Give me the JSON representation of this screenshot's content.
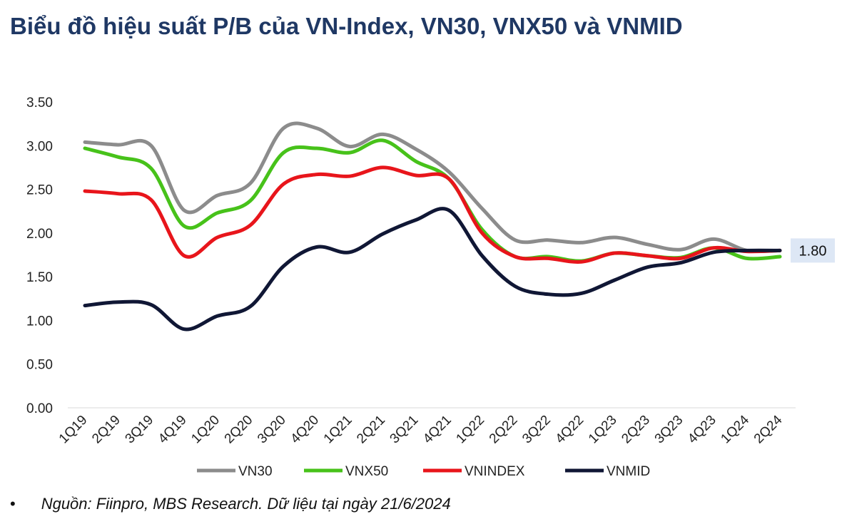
{
  "title": "Biểu đồ hiệu suất P/B của VN-Index, VN30, VNX50 và VNMID",
  "source_bullet": "•",
  "source": "Nguồn: Fiinpro, MBS Research. Dữ liệu tại ngày 21/6/2024",
  "chart_data": {
    "type": "line",
    "title": "Biểu đồ hiệu suất P/B của VN-Index, VN30, VNX50 và VNMID",
    "xlabel": "",
    "ylabel": "",
    "ylim": [
      0,
      3.5
    ],
    "yticks": [
      "0.00",
      "0.50",
      "1.00",
      "1.50",
      "2.00",
      "2.50",
      "3.00",
      "3.50"
    ],
    "grid": false,
    "legend_position": "bottom",
    "categories": [
      "1Q19",
      "2Q19",
      "3Q19",
      "4Q19",
      "1Q20",
      "2Q20",
      "3Q20",
      "4Q20",
      "1Q21",
      "2Q21",
      "3Q21",
      "4Q21",
      "1Q22",
      "2Q22",
      "3Q22",
      "4Q22",
      "1Q23",
      "2Q23",
      "3Q23",
      "4Q23",
      "1Q24",
      "2Q24"
    ],
    "series": [
      {
        "name": "VN30",
        "color": "#8c8c8c",
        "values": [
          3.04,
          3.01,
          3.0,
          2.26,
          2.43,
          2.57,
          3.2,
          3.2,
          2.99,
          3.13,
          2.96,
          2.7,
          2.28,
          1.92,
          1.92,
          1.89,
          1.95,
          1.87,
          1.81,
          1.93,
          1.8,
          1.8
        ]
      },
      {
        "name": "VNX50",
        "color": "#47c21a",
        "values": [
          2.97,
          2.87,
          2.74,
          2.08,
          2.23,
          2.37,
          2.92,
          2.97,
          2.92,
          3.06,
          2.82,
          2.62,
          2.04,
          1.73,
          1.73,
          1.68,
          1.77,
          1.74,
          1.72,
          1.83,
          1.71,
          1.73
        ]
      },
      {
        "name": "VNINDEX",
        "color": "#e8151b",
        "values": [
          2.48,
          2.45,
          2.38,
          1.74,
          1.95,
          2.09,
          2.56,
          2.67,
          2.65,
          2.75,
          2.66,
          2.62,
          2.0,
          1.73,
          1.71,
          1.67,
          1.77,
          1.74,
          1.71,
          1.83,
          1.79,
          1.8
        ]
      },
      {
        "name": "VNMID",
        "color": "#101735",
        "values": [
          1.17,
          1.21,
          1.18,
          0.9,
          1.05,
          1.16,
          1.62,
          1.84,
          1.78,
          1.99,
          2.15,
          2.26,
          1.74,
          1.39,
          1.3,
          1.31,
          1.46,
          1.61,
          1.66,
          1.78,
          1.8,
          1.8
        ]
      }
    ],
    "end_label": {
      "series": "VNMID",
      "text": "1.80"
    }
  }
}
